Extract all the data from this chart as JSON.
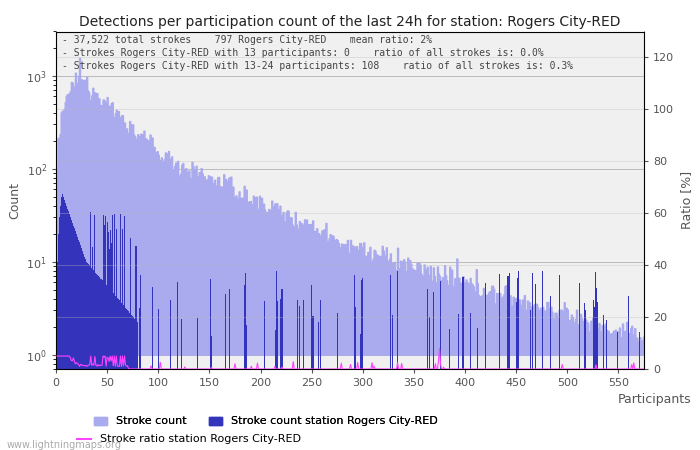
{
  "title": "Detections per participation count of the last 24h for station: Rogers City-RED",
  "annotation_line1": "- 37,522 total strokes    797 Rogers City-RED    mean ratio: 2%",
  "annotation_line2": "- Strokes Rogers City-RED with 13 participants: 0    ratio of all strokes is: 0.0%",
  "annotation_line3": "- Strokes Rogers City-RED with 13-24 participants: 108    ratio of all strokes is: 0.3%",
  "xlabel": "Participants",
  "ylabel_left": "Count",
  "ylabel_right": "Ratio [%]",
  "xlim": [
    0,
    575
  ],
  "ylim_left": [
    0.7,
    3000
  ],
  "ylim_right": [
    0,
    130
  ],
  "yticks_right": [
    0,
    20,
    40,
    60,
    80,
    100,
    120
  ],
  "ytick_labels_left": [
    "10^0",
    "10^1",
    "10^2",
    "10^3"
  ],
  "ytick_vals_left": [
    1,
    10,
    100,
    1000
  ],
  "color_total": "#aaaaee",
  "color_station": "#3333bb",
  "color_ratio": "#ff44ff",
  "color_bg": "#ffffff",
  "color_plot_bg": "#f0f0f0",
  "color_grid": "#bbbbbb",
  "color_text": "#555555",
  "watermark": "www.lightningmaps.org",
  "num_bars": 575,
  "seed": 12345
}
